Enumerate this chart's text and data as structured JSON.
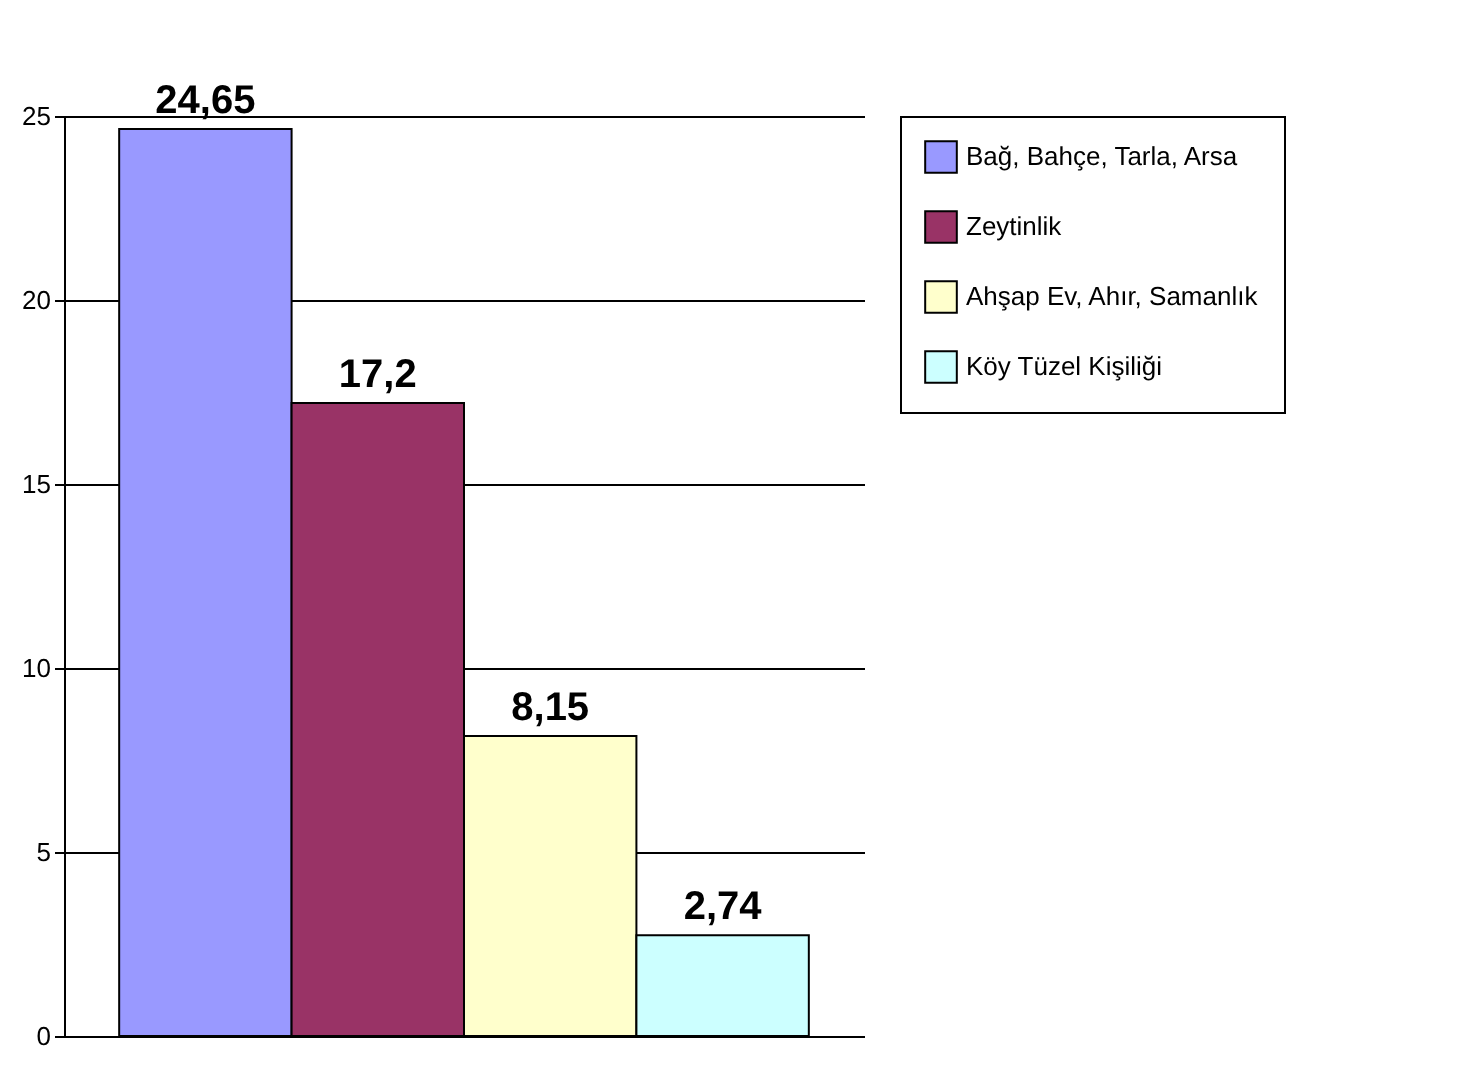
{
  "chart_data": {
    "type": "bar",
    "categories": [
      null
    ],
    "series": [
      {
        "name": "Bağ, Bahçe, Tarla, Arsa",
        "color": "#9999ff",
        "values": [
          24.65
        ],
        "value_labels": [
          "24,65"
        ]
      },
      {
        "name": "Zeytinlik",
        "color": "#993366",
        "values": [
          17.2
        ],
        "value_labels": [
          "17,2"
        ]
      },
      {
        "name": "Ahşap Ev, Ahır, Samanlık",
        "color": "#ffffcc",
        "values": [
          8.15
        ],
        "value_labels": [
          "8,15"
        ]
      },
      {
        "name": "Köy Tüzel Kişiliği",
        "color": "#ccffff",
        "values": [
          2.74
        ],
        "value_labels": [
          "2,74"
        ]
      }
    ],
    "ylim": [
      0,
      25
    ],
    "yticks": [
      0,
      5,
      10,
      15,
      20,
      25
    ],
    "grid": "y",
    "legend": "top right"
  }
}
